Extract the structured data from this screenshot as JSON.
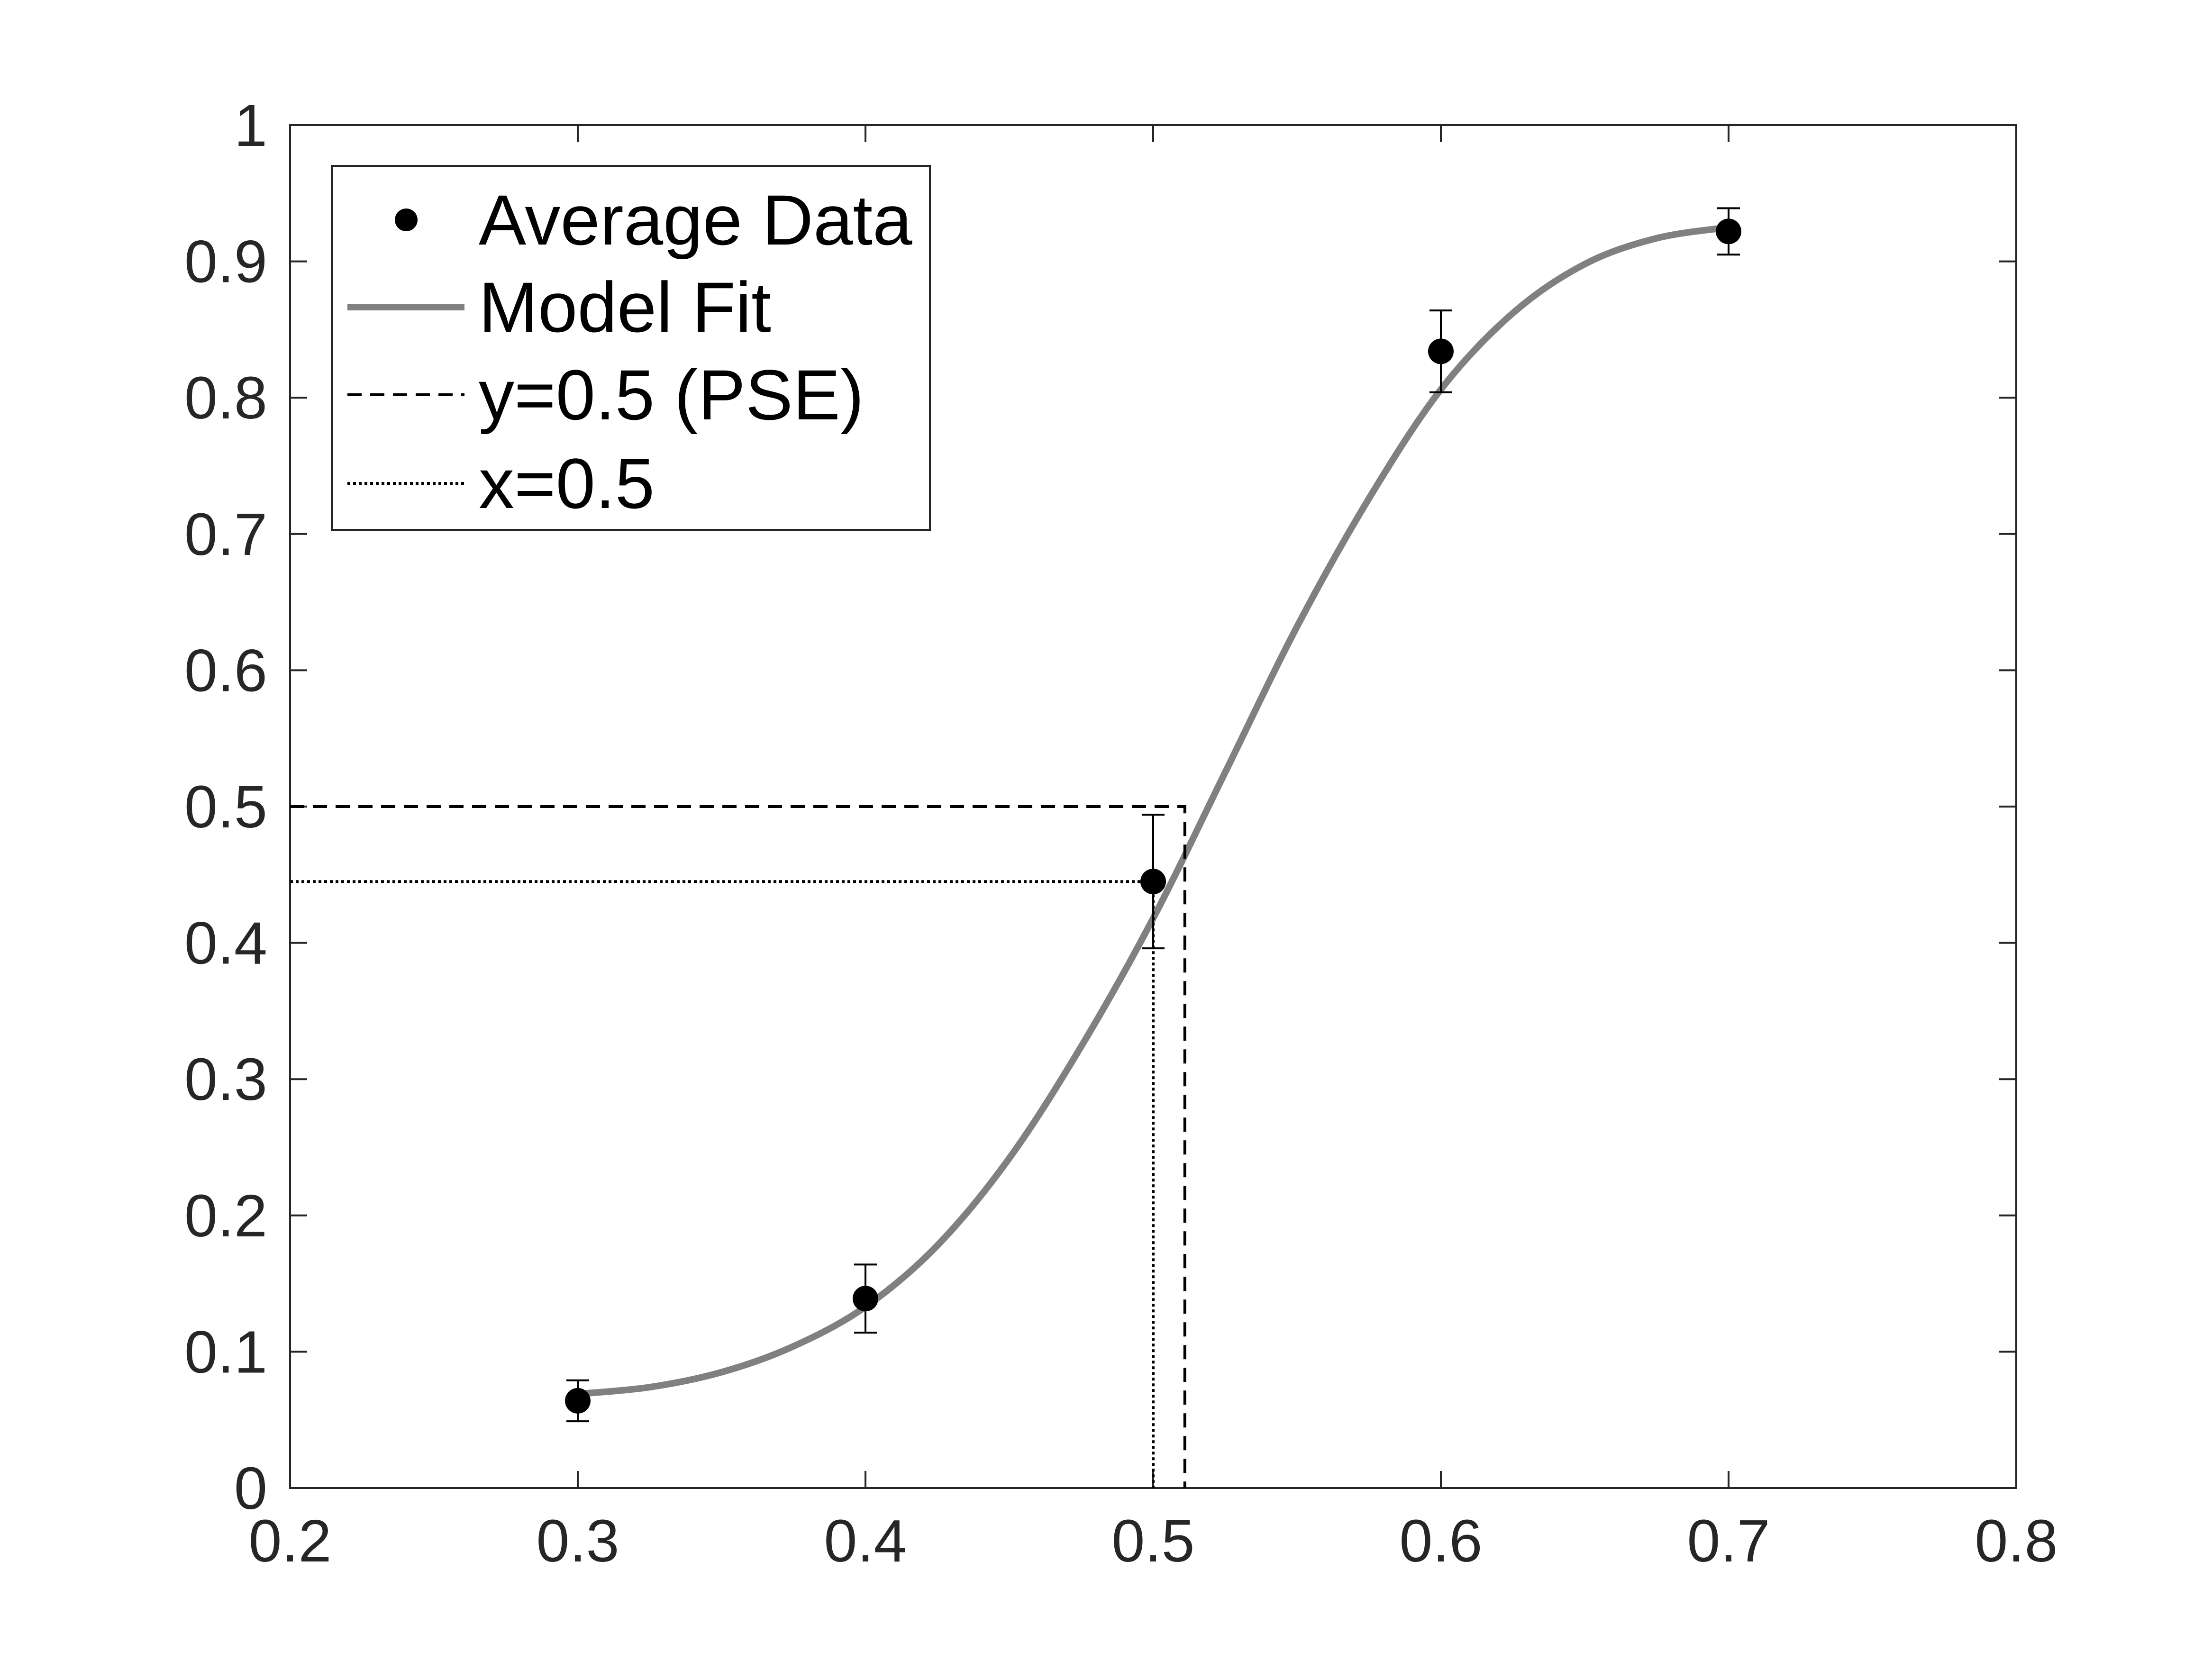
{
  "chart_data": {
    "type": "scatter",
    "title": "",
    "xlabel": "",
    "ylabel": "",
    "xlim": [
      0.2,
      0.8
    ],
    "ylim": [
      0,
      1
    ],
    "x_ticks": [
      "0.2",
      "0.3",
      "0.4",
      "0.5",
      "0.6",
      "0.7",
      "0.8"
    ],
    "y_ticks": [
      "0",
      "0.1",
      "0.2",
      "0.3",
      "0.4",
      "0.5",
      "0.6",
      "0.7",
      "0.8",
      "0.9",
      "1"
    ],
    "grid": false,
    "legend_position": "top-left",
    "series": [
      {
        "name": "Average Data",
        "type": "scatter",
        "marker": "filled-circle",
        "color": "#000000",
        "x": [
          0.3,
          0.4,
          0.5,
          0.6,
          0.7
        ],
        "y": [
          0.064,
          0.139,
          0.445,
          0.834,
          0.922
        ],
        "error": [
          0.015,
          0.025,
          0.049,
          0.03,
          0.017
        ]
      },
      {
        "name": "Model Fit",
        "type": "line",
        "style": "solid",
        "color": "#808080",
        "x": [
          0.3,
          0.325,
          0.35,
          0.375,
          0.4,
          0.425,
          0.45,
          0.475,
          0.5,
          0.525,
          0.55,
          0.575,
          0.6,
          0.625,
          0.65,
          0.675,
          0.7
        ],
        "y": [
          0.069,
          0.074,
          0.085,
          0.104,
          0.133,
          0.178,
          0.242,
          0.324,
          0.418,
          0.525,
          0.632,
          0.726,
          0.806,
          0.862,
          0.898,
          0.917,
          0.925
        ]
      },
      {
        "name": "y=0.5 (PSE)",
        "type": "line",
        "style": "dashed",
        "color": "#000000",
        "x": [
          0.2,
          0.511,
          0.511
        ],
        "y": [
          0.5,
          0.5,
          0
        ]
      },
      {
        "name": "x=0.5",
        "type": "line",
        "style": "dotted",
        "color": "#000000",
        "x": [
          0.2,
          0.5,
          0.5
        ],
        "y": [
          0.445,
          0.445,
          0
        ]
      }
    ]
  }
}
